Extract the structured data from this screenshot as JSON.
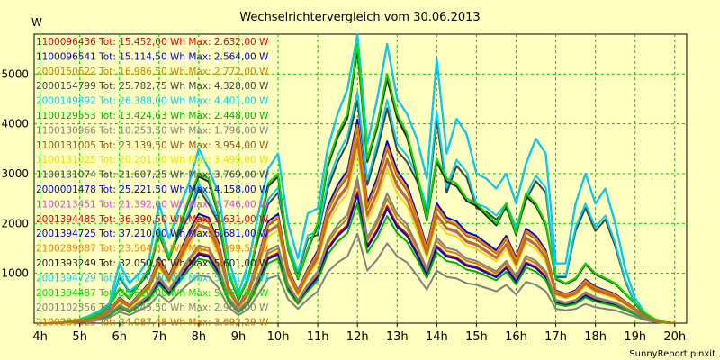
{
  "chart_data": {
    "type": "line",
    "title": "Wechselrichtervergleich vom 30.06.2013",
    "ylabel": "W",
    "footer": "SunnyReport pinxit",
    "ylim": [
      0,
      5800
    ],
    "yticks": [
      1000,
      2000,
      3000,
      4000,
      5000
    ],
    "x_labels": [
      "4h",
      "5h",
      "6h",
      "7h",
      "8h",
      "9h",
      "10h",
      "11h",
      "12h",
      "13h",
      "14h",
      "15h",
      "16h",
      "17h",
      "18h",
      "19h",
      "20h"
    ],
    "x_label_hours": [
      4,
      5,
      6,
      7,
      8,
      9,
      10,
      11,
      12,
      13,
      14,
      15,
      16,
      17,
      18,
      19,
      20
    ],
    "grid": true,
    "legend_position": "top-left",
    "x": [
      4.0,
      4.25,
      4.5,
      4.75,
      5.0,
      5.25,
      5.5,
      5.75,
      6.0,
      6.25,
      6.5,
      6.75,
      7.0,
      7.25,
      7.5,
      7.75,
      8.0,
      8.25,
      8.5,
      8.75,
      9.0,
      9.25,
      9.5,
      9.75,
      10.0,
      10.25,
      10.5,
      10.75,
      11.0,
      11.25,
      11.5,
      11.75,
      12.0,
      12.25,
      12.5,
      12.75,
      13.0,
      13.25,
      13.5,
      13.75,
      14.0,
      14.25,
      14.5,
      14.75,
      15.0,
      15.25,
      15.5,
      15.75,
      16.0,
      16.25,
      16.5,
      16.75,
      17.0,
      17.25,
      17.5,
      17.75,
      18.0,
      18.25,
      18.5,
      18.75,
      19.0,
      19.25,
      19.5,
      19.75,
      20.0
    ],
    "series": [
      {
        "label": "1100096436 Tot: 15.452,00 Wh Max: 2.632,00 W",
        "color": "#e00000",
        "scale": 0.47,
        "shape": "strong"
      },
      {
        "label": "1100096541 Tot: 15.114,50 Wh Max: 2.564,00 W",
        "color": "#0000d0",
        "scale": 0.46,
        "shape": "strong"
      },
      {
        "label": "2000150622 Tot: 16.986,50 Wh Max: 2.772,00 W",
        "color": "#d08000",
        "scale": 0.5,
        "shape": "strong"
      },
      {
        "label": "2000154799 Tot: 25.782,75 Wh Max: 4.328,00 W",
        "color": "#404040",
        "scale": 0.77,
        "shape": "weak"
      },
      {
        "label": "2000149892 Tot: 26.388,00 Wh Max: 4.401,00 W",
        "color": "#00d0f0",
        "scale": 0.8,
        "shape": "weak"
      },
      {
        "label": "1100129553 Tot: 13.424,63 Wh Max: 2.448,00 W",
        "color": "#00b000",
        "scale": 0.43,
        "shape": "strong"
      },
      {
        "label": "1100130966 Tot: 10.253,50 Wh Max: 1.796,00 W",
        "color": "#808080",
        "scale": 0.32,
        "shape": "strong"
      },
      {
        "label": "1100131005 Tot: 23.139,50 Wh Max: 3.954,00 W",
        "color": "#a05010",
        "scale": 0.7,
        "shape": "strong"
      },
      {
        "label": "1100131025 Tot: 20.201,00 Wh Max: 3.499,00 W",
        "color": "#e8e000",
        "scale": 0.62,
        "shape": "strong"
      },
      {
        "label": "1100131074 Tot: 21.607,25 Wh Max: 3.769,00 W",
        "color": "#404040",
        "scale": 0.66,
        "shape": "strong"
      },
      {
        "label": "2000001478 Tot: 25.221,50 Wh Max: 4.158,00 W",
        "color": "#0000d0",
        "scale": 0.73,
        "shape": "strong"
      },
      {
        "label": "1100213451 Tot: 21.392,00 Wh Max: 3.746,00 W",
        "color": "#e040e0",
        "scale": 0.65,
        "shape": "strong"
      },
      {
        "label": "2001394485 Tot: 36.390,50 Wh Max: 5.631,00 W",
        "color": "#e00000",
        "scale": 1.0,
        "shape": "strong"
      },
      {
        "label": "2001394725 Tot: 37.210,00 Wh Max: 5.681,00 W",
        "color": "#0000d0",
        "scale": 1.0,
        "shape": "weak"
      },
      {
        "label": "2100289887 Tot: 23.564,61 Wh Max: 3.999,53 W",
        "color": "#f08000",
        "scale": 0.71,
        "shape": "strong"
      },
      {
        "label": "2001393249 Tot: 32.050,50 Wh Max: 5.601,00 W",
        "color": "#202020",
        "scale": 0.98,
        "shape": "strong"
      },
      {
        "label": "2001394729 Tot: 36.970,00 Wh Max: 5.711,00 W",
        "color": "#00d0f0",
        "scale": 1.0,
        "shape": "weak"
      },
      {
        "label": "2001394487 Tot: 35.620,00 Wh Max: 5.650,00 W",
        "color": "#00e000",
        "scale": 1.0,
        "shape": "strong"
      },
      {
        "label": "2001102356 Tot: 17.345,50 Wh Max: 2.962,00 W",
        "color": "#808080",
        "scale": 0.52,
        "shape": "strong"
      },
      {
        "label": "2100289829 Tot: 24.087,48 Wh Max: 3.692,29 W",
        "color": "#c07000",
        "scale": 0.66,
        "shape": "strong"
      }
    ],
    "shapes": {
      "strong": [
        0,
        0,
        10,
        30,
        70,
        120,
        200,
        350,
        700,
        500,
        800,
        1100,
        1800,
        1300,
        1900,
        2500,
        3000,
        2900,
        2200,
        1000,
        500,
        900,
        1800,
        2800,
        3000,
        1500,
        900,
        1500,
        2000,
        3200,
        3800,
        4200,
        5600,
        3300,
        4000,
        5000,
        4200,
        3800,
        3000,
        2100,
        3300,
        2900,
        2800,
        2500,
        2400,
        2200,
        2000,
        2400,
        1800,
        2600,
        2400,
        2000,
        900,
        800,
        900,
        1200,
        1000,
        900,
        800,
        600,
        400,
        200,
        80,
        20,
        0
      ],
      "weak": [
        0,
        0,
        10,
        30,
        80,
        150,
        250,
        400,
        1200,
        800,
        1000,
        1300,
        2400,
        1700,
        2300,
        2800,
        3500,
        3100,
        2600,
        1300,
        600,
        1200,
        2200,
        3100,
        3400,
        2000,
        1300,
        2200,
        2300,
        3500,
        4200,
        4700,
        5800,
        3600,
        4500,
        5600,
        4500,
        4200,
        3700,
        2900,
        5300,
        3400,
        4100,
        3800,
        3000,
        2900,
        2700,
        3000,
        2400,
        3200,
        3700,
        3400,
        1200,
        1200,
        2400,
        3000,
        2400,
        2700,
        2000,
        1100,
        500,
        200,
        80,
        20,
        0
      ]
    }
  }
}
